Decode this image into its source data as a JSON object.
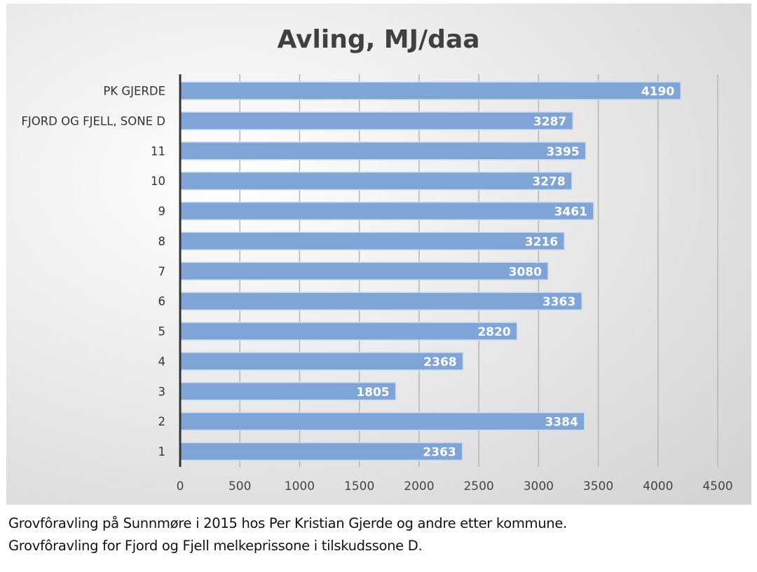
{
  "chart_data": {
    "type": "bar",
    "orientation": "horizontal",
    "title": "Avling, MJ/daa",
    "categories": [
      "PK GJERDE",
      "FJORD OG FJELL, SONE D",
      "11",
      "10",
      "9",
      "8",
      "7",
      "6",
      "5",
      "4",
      "3",
      "2",
      "1"
    ],
    "values": [
      4190,
      3287,
      3395,
      3278,
      3461,
      3216,
      3080,
      3363,
      2820,
      2368,
      1805,
      3384,
      2363
    ],
    "xlim": [
      0,
      4500
    ],
    "xticks": [
      0,
      500,
      1000,
      1500,
      2000,
      2500,
      3000,
      3500,
      4000,
      4500
    ],
    "grid": true,
    "data_labels": true,
    "bar_color": "#7fa5d6"
  },
  "caption": {
    "line1": "Grovfôravling på Sunnmøre i 2015 hos Per Kristian Gjerde og andre etter kommune.",
    "line2": "Grovfôravling for Fjord og Fjell melkeprissone i tilskudssone D."
  }
}
